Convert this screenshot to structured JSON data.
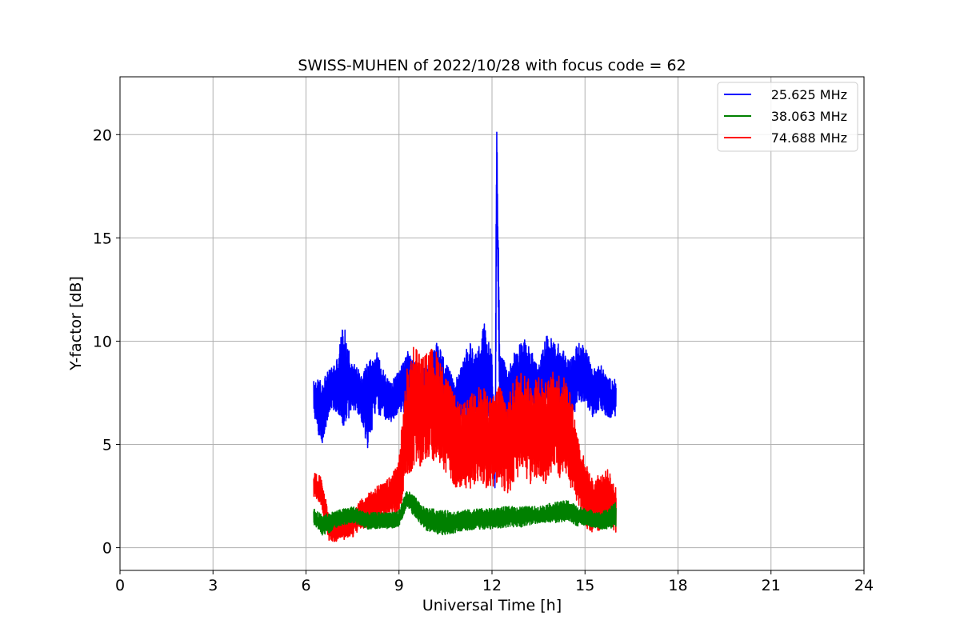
{
  "chart_data": {
    "type": "line",
    "title": "SWISS-MUHEN of 2022/10/28 with focus code = 62",
    "xlabel": "Universal Time [h]",
    "ylabel": "Y-factor [dB]",
    "xlim": [
      0,
      24
    ],
    "ylim": [
      -1.1,
      22.8
    ],
    "xticks": [
      0,
      3,
      6,
      9,
      12,
      15,
      18,
      21,
      24
    ],
    "xtick_labels": [
      "0",
      "3",
      "6",
      "9",
      "12",
      "15",
      "18",
      "21",
      "24"
    ],
    "yticks": [
      0,
      5,
      10,
      15,
      20
    ],
    "ytick_labels": [
      "0",
      "5",
      "10",
      "15",
      "20"
    ],
    "grid": true,
    "legend_position": "top-right",
    "series": [
      {
        "name": "25.625 MHz",
        "color": "#0000ff",
        "x": [
          6.25,
          6.5,
          6.75,
          7.0,
          7.2,
          7.5,
          7.75,
          8.0,
          8.25,
          8.5,
          8.75,
          9.0,
          9.25,
          9.5,
          9.75,
          10.0,
          10.25,
          10.5,
          10.75,
          11.0,
          11.25,
          11.5,
          11.75,
          12.0,
          12.1,
          12.15,
          12.25,
          12.5,
          12.75,
          13.0,
          13.25,
          13.5,
          13.75,
          14.0,
          14.25,
          14.5,
          14.75,
          15.0,
          15.25,
          15.5,
          15.75,
          16.0
        ],
        "y": [
          7.3,
          6.5,
          7.6,
          7.9,
          8.3,
          7.8,
          7.5,
          6.9,
          8.1,
          7.4,
          7.0,
          7.6,
          8.0,
          7.5,
          7.3,
          7.9,
          8.3,
          7.8,
          7.0,
          7.5,
          8.2,
          7.5,
          8.6,
          7.3,
          3.6,
          18.5,
          8.2,
          7.2,
          7.8,
          8.4,
          8.1,
          7.5,
          8.7,
          8.2,
          7.9,
          7.6,
          8.3,
          8.5,
          7.5,
          7.8,
          7.2,
          7.3
        ],
        "envelope": [
          0.8,
          1.7,
          1.0,
          1.3,
          2.6,
          1.2,
          1.1,
          2.2,
          1.5,
          1.2,
          1.0,
          1.0,
          1.6,
          1.5,
          1.2,
          1.4,
          1.7,
          1.2,
          1.2,
          1.2,
          1.8,
          2.0,
          2.3,
          2.1,
          1.4,
          3.2,
          1.5,
          1.3,
          1.9,
          1.8,
          1.5,
          1.3,
          1.6,
          1.9,
          1.8,
          1.5,
          1.6,
          1.4,
          1.2,
          1.1,
          1.0,
          0.9
        ]
      },
      {
        "name": "38.063 MHz",
        "color": "#008000",
        "x": [
          6.25,
          6.5,
          6.75,
          7.0,
          7.5,
          8.0,
          8.5,
          9.0,
          9.25,
          9.5,
          9.75,
          10.0,
          10.5,
          11.0,
          11.5,
          12.0,
          12.5,
          13.0,
          13.5,
          14.0,
          14.5,
          14.75,
          15.0,
          15.25,
          15.5,
          15.75,
          16.0
        ],
        "y": [
          1.5,
          1.1,
          1.2,
          1.4,
          1.6,
          1.3,
          1.3,
          1.4,
          2.4,
          2.0,
          1.5,
          1.3,
          1.2,
          1.3,
          1.4,
          1.4,
          1.5,
          1.5,
          1.6,
          1.7,
          1.8,
          1.5,
          1.5,
          1.4,
          1.3,
          1.4,
          1.6
        ],
        "envelope": [
          0.4,
          0.5,
          0.5,
          0.4,
          0.4,
          0.4,
          0.4,
          0.4,
          0.4,
          0.5,
          0.5,
          0.6,
          0.6,
          0.5,
          0.5,
          0.5,
          0.5,
          0.5,
          0.4,
          0.5,
          0.5,
          0.5,
          0.4,
          0.4,
          0.4,
          0.5,
          0.6
        ]
      },
      {
        "name": "74.688 MHz",
        "color": "#ff0000",
        "x": [
          6.25,
          6.5,
          6.75,
          7.0,
          7.25,
          7.5,
          7.75,
          8.0,
          8.25,
          8.5,
          8.75,
          9.0,
          9.25,
          9.5,
          9.75,
          10.0,
          10.25,
          10.5,
          10.75,
          11.0,
          11.25,
          11.5,
          11.75,
          12.0,
          12.25,
          12.5,
          12.75,
          13.0,
          13.25,
          13.5,
          13.75,
          14.0,
          14.25,
          14.5,
          14.75,
          15.0,
          15.25,
          15.5,
          15.75,
          16.0
        ],
        "y": [
          3.1,
          2.7,
          0.9,
          0.8,
          0.9,
          1.1,
          1.6,
          1.8,
          2.2,
          2.3,
          2.6,
          3.0,
          6.0,
          7.0,
          6.5,
          7.0,
          6.8,
          6.0,
          5.2,
          4.8,
          5.0,
          5.5,
          5.3,
          5.0,
          5.6,
          4.8,
          5.8,
          6.0,
          5.5,
          6.0,
          5.5,
          6.2,
          5.8,
          5.5,
          3.8,
          2.6,
          2.0,
          2.2,
          2.5,
          1.8
        ],
        "envelope": [
          0.6,
          0.7,
          0.6,
          0.5,
          0.5,
          0.6,
          0.7,
          0.8,
          0.8,
          0.8,
          0.9,
          1.4,
          2.6,
          3.1,
          2.7,
          2.7,
          2.7,
          2.4,
          2.3,
          2.1,
          2.2,
          2.4,
          2.4,
          2.2,
          2.5,
          2.3,
          2.6,
          2.6,
          2.5,
          2.6,
          2.5,
          2.4,
          2.6,
          2.4,
          1.8,
          1.6,
          1.3,
          1.4,
          1.3,
          1.1
        ]
      }
    ]
  }
}
